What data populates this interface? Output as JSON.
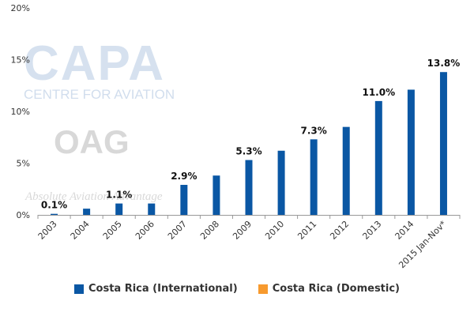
{
  "watermarks": {
    "capa_logo": "CAPA",
    "capa_tagline": "CENTRE FOR AVIATION",
    "oag_logo": "OAG",
    "oag_tagline": "Absolute Aviation Advantage"
  },
  "chart_data": {
    "type": "bar",
    "title": "",
    "xlabel": "",
    "ylabel": "",
    "ylim": [
      0,
      20
    ],
    "yticks": [
      "0%",
      "5%",
      "10%",
      "15%",
      "20%"
    ],
    "grid": false,
    "legend_position": "bottom",
    "categories": [
      "2003",
      "2004",
      "2005",
      "2006",
      "2007",
      "2008",
      "2009",
      "2010",
      "2011",
      "2012",
      "2013",
      "2014",
      "2015 Jan-Nov*"
    ],
    "series": [
      {
        "name": "Costa Rica (International)",
        "color": "#0a57a4",
        "values": [
          0.1,
          0.6,
          1.1,
          1.1,
          2.9,
          3.8,
          5.3,
          6.2,
          7.3,
          8.5,
          11.0,
          12.1,
          13.8
        ]
      },
      {
        "name": "Costa Rica (Domestic)",
        "color": "#f79a2e",
        "values": [
          0,
          0,
          0,
          0,
          0,
          0,
          0,
          0,
          0,
          0,
          0,
          0,
          0
        ]
      }
    ],
    "data_labels": [
      {
        "category": "2003",
        "text": "0.1%"
      },
      {
        "category": "2005",
        "text": "1.1%"
      },
      {
        "category": "2007",
        "text": "2.9%"
      },
      {
        "category": "2009",
        "text": "5.3%"
      },
      {
        "category": "2011",
        "text": "7.3%"
      },
      {
        "category": "2013",
        "text": "11.0%"
      },
      {
        "category": "2015 Jan-Nov*",
        "text": "13.8%"
      }
    ]
  }
}
